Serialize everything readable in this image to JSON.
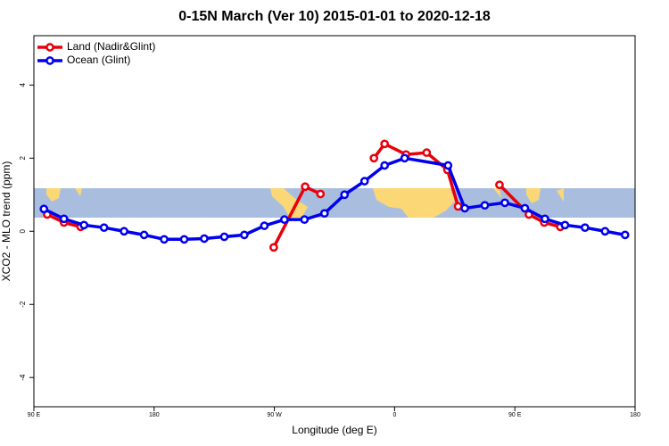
{
  "chart_data": {
    "type": "line",
    "title": "0-15N March (Ver 10)   2015-01-01 to 2020-12-18",
    "x_label": "Longitude (deg E)",
    "y_label": "XCO2 - MLO trend (ppm)",
    "xlim": [
      90,
      540
    ],
    "ylim": [
      -4.8,
      5.35
    ],
    "xticks": [
      {
        "value": 90,
        "label": "90 E"
      },
      {
        "value": 180,
        "label": "180"
      },
      {
        "value": 270,
        "label": "90 W"
      },
      {
        "value": 360,
        "label": "0"
      },
      {
        "value": 450,
        "label": "90 E"
      },
      {
        "value": 540,
        "label": "180"
      }
    ],
    "yticks": [
      -4,
      -2,
      0,
      2,
      4
    ],
    "legend": "top-left",
    "series": [
      {
        "name": "Land (Nadir&Glint)",
        "color": "#e8000b",
        "x": [
          100,
          112.5,
          125,
          null,
          269.5,
          293,
          304.5,
          null,
          344.5,
          352.5,
          368.5,
          384,
          399.5,
          407.5,
          null,
          438.5,
          460.5,
          472,
          484
        ],
        "values": [
          0.46,
          0.24,
          0.12,
          null,
          -0.44,
          1.22,
          1.02,
          null,
          2.0,
          2.39,
          2.1,
          2.15,
          1.68,
          0.68,
          null,
          1.27,
          0.46,
          0.24,
          0.12
        ]
      },
      {
        "name": "Ocean (Glint)",
        "color": "#0000ee",
        "x": [
          97.5,
          112.5,
          127.5,
          142.5,
          157.5,
          172.5,
          187.5,
          202.5,
          217.5,
          232.5,
          247.5,
          262.5,
          277.5,
          292.5,
          307.5,
          322.5,
          337.5,
          352.5,
          367.5,
          400,
          412.5,
          427.5,
          442.5,
          457.5,
          472.5,
          487.5,
          502.5,
          517.5,
          532.5
        ],
        "values": [
          0.61,
          0.34,
          0.17,
          0.1,
          0,
          -0.1,
          -0.22,
          -0.22,
          -0.2,
          -0.15,
          -0.1,
          0.15,
          0.32,
          0.32,
          0.49,
          1.0,
          1.37,
          1.8,
          2.0,
          1.8,
          0.63,
          0.71,
          0.78,
          0.63,
          0.34,
          0.17,
          0.1,
          0,
          -0.1
        ]
      }
    ]
  }
}
